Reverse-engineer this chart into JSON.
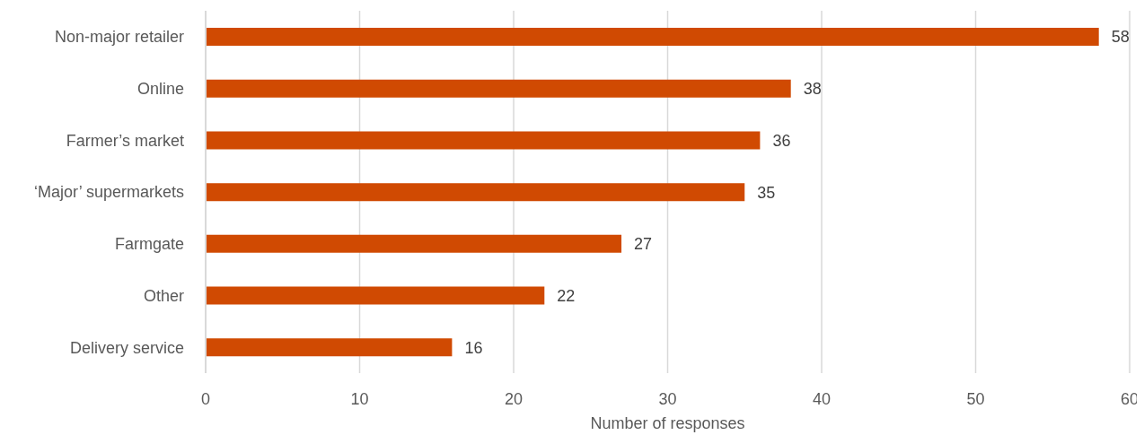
{
  "chart_data": {
    "type": "bar",
    "orientation": "horizontal",
    "categories": [
      "Non-major retailer",
      "Online",
      "Farmer’s market",
      "‘Major’ supermarkets",
      "Farmgate",
      "Other",
      "Delivery service"
    ],
    "values": [
      58,
      38,
      36,
      35,
      27,
      22,
      16
    ],
    "color": "#d04a02",
    "xlim": [
      0,
      60
    ],
    "xticks": [
      0,
      10,
      20,
      30,
      40,
      50,
      60
    ],
    "xlabel": "Number of responses",
    "grid": "x",
    "data_labels": true
  }
}
